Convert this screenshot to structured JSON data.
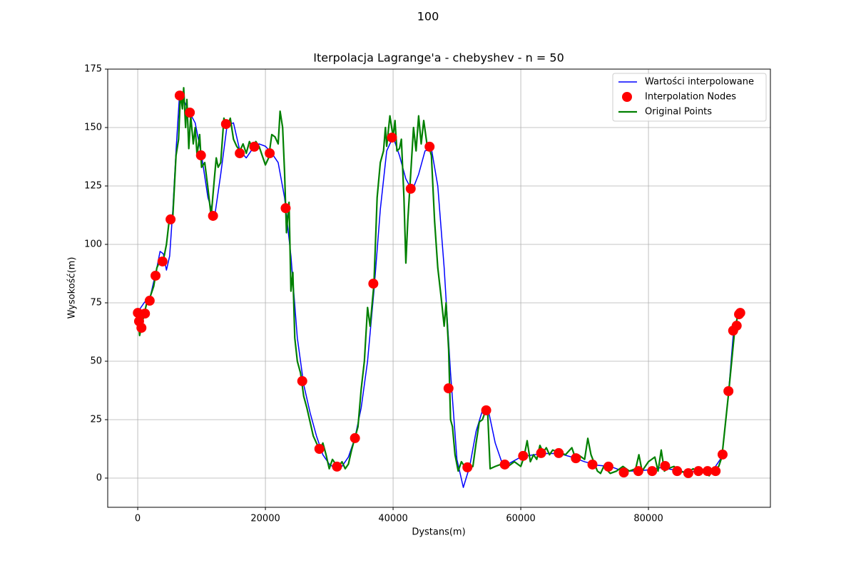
{
  "chart_data": {
    "type": "line",
    "suptitle": "100",
    "title": "Iterpolacja Lagrange'a - chebyshev - n = 50",
    "xlabel": "Dystans(m)",
    "ylabel": "Wysokość(m)",
    "xlim": [
      -4700,
      99100
    ],
    "ylim": [
      -12.5,
      175
    ],
    "xticks": [
      0,
      20000,
      40000,
      60000,
      80000
    ],
    "yticks": [
      0,
      25,
      50,
      75,
      100,
      125,
      150,
      175
    ],
    "grid": true,
    "legend": "upper right",
    "series": [
      {
        "name": "Wartości interpolowane",
        "type": "line",
        "color": "#0000ff",
        "x": [
          0,
          1000,
          2000,
          3000,
          3500,
          4000,
          4500,
          5000,
          5500,
          6000,
          6500,
          7000,
          8000,
          9000,
          10000,
          11000,
          12000,
          13000,
          14000,
          15000,
          16000,
          17000,
          18000,
          19000,
          20000,
          21000,
          22000,
          23000,
          24000,
          25000,
          26000,
          27000,
          28000,
          29000,
          30000,
          31000,
          32000,
          33000,
          34000,
          35000,
          36000,
          37000,
          38000,
          39000,
          40000,
          41000,
          42000,
          43000,
          44000,
          45000,
          46000,
          47000,
          48000,
          49000,
          50000,
          51000,
          52000,
          53000,
          54000,
          55000,
          56000,
          57000,
          58000,
          60000,
          62000,
          64000,
          66000,
          68000,
          70000,
          72000,
          74000,
          76000,
          78000,
          80000,
          82000,
          84000,
          86000,
          88000,
          90000,
          91500,
          92500,
          93300,
          94000,
          94400
        ],
        "values": [
          71,
          75,
          78,
          90,
          97,
          96,
          89,
          95,
          115,
          140,
          162,
          163,
          157,
          152,
          138,
          120,
          111,
          130,
          151,
          152,
          140,
          137,
          141,
          143,
          142,
          139,
          135,
          120,
          95,
          60,
          40,
          28,
          18,
          10,
          6,
          4,
          5,
          9,
          17,
          30,
          50,
          80,
          115,
          140,
          146,
          138,
          128,
          123,
          130,
          140,
          141,
          125,
          90,
          45,
          8,
          -4,
          5,
          20,
          29,
          28,
          15,
          7,
          6,
          9,
          10,
          10.5,
          10.5,
          9,
          7,
          5.5,
          5,
          3,
          3,
          3.5,
          4.5,
          3.5,
          2.5,
          3,
          3,
          9,
          35,
          62,
          69,
          71
        ]
      },
      {
        "name": "Interpolation Nodes",
        "type": "scatter",
        "color": "#ff0000",
        "x": [
          23,
          210,
          581,
          1137,
          1874,
          2790,
          3882,
          5144,
          6573,
          8162,
          9905,
          11795,
          13825,
          15986,
          18261,
          20670,
          23173,
          25772,
          28455,
          31211,
          34032,
          36904,
          39817,
          42758,
          45717,
          48683,
          51642,
          54583,
          57496,
          60368,
          63189,
          65945,
          68628,
          71227,
          73730,
          76139,
          78414,
          80575,
          82605,
          84495,
          86238,
          87827,
          89256,
          90518,
          91610,
          92526,
          93263,
          93819,
          94190,
          94377
        ],
        "values": [
          70.7,
          67.1,
          64.3,
          70.4,
          75.9,
          86.6,
          92.7,
          110.7,
          163.7,
          156.4,
          138.1,
          112.2,
          151.5,
          139.0,
          141.8,
          139.0,
          115.5,
          41.5,
          12.5,
          4.9,
          17.1,
          83.2,
          145.7,
          123.8,
          141.8,
          38.4,
          4.6,
          29.0,
          5.8,
          9.5,
          10.7,
          10.7,
          8.5,
          5.8,
          4.9,
          2.4,
          3.0,
          3.0,
          5.2,
          3.0,
          2.1,
          3.0,
          3.0,
          3.0,
          10.1,
          37.2,
          63.1,
          65.2,
          70.1,
          70.7
        ]
      },
      {
        "name": "Original Points",
        "type": "line",
        "color": "#008000",
        "x": [
          0,
          300,
          600,
          1000,
          1500,
          2000,
          2500,
          3000,
          3500,
          4000,
          4500,
          5000,
          5500,
          6000,
          6400,
          6700,
          7000,
          7200,
          7500,
          7700,
          8000,
          8300,
          8700,
          9000,
          9300,
          9700,
          10000,
          10500,
          11000,
          11500,
          12000,
          12300,
          12600,
          13000,
          13500,
          14000,
          14500,
          15000,
          15500,
          16000,
          16500,
          17000,
          17500,
          18000,
          18500,
          19000,
          19500,
          20000,
          20500,
          21000,
          21500,
          22000,
          22300,
          22700,
          23000,
          23300,
          23700,
          24000,
          24300,
          24600,
          25000,
          25500,
          26000,
          26500,
          27000,
          27500,
          28000,
          28500,
          29000,
          29500,
          30000,
          30500,
          31000,
          31500,
          32000,
          32500,
          33000,
          33500,
          34000,
          34500,
          35000,
          35500,
          36000,
          36400,
          37000,
          37500,
          38000,
          38500,
          38800,
          39000,
          39500,
          40000,
          40300,
          40600,
          41000,
          41300,
          41700,
          42000,
          42300,
          42800,
          43200,
          43600,
          44000,
          44400,
          44800,
          45300,
          45700,
          46000,
          46500,
          47000,
          47500,
          48000,
          48300,
          48700,
          49000,
          49300,
          49700,
          50200,
          50700,
          51200,
          51800,
          52500,
          53000,
          53500,
          54000,
          54500,
          54800,
          55200,
          56000,
          57000,
          58000,
          59000,
          60000,
          60500,
          61000,
          61500,
          62000,
          62500,
          63000,
          63500,
          64000,
          64500,
          65000,
          66000,
          67000,
          68000,
          68500,
          69000,
          70000,
          70500,
          71000,
          72000,
          72500,
          73000,
          74000,
          75000,
          76000,
          77000,
          78000,
          78500,
          79000,
          80000,
          81000,
          81500,
          82000,
          82500,
          83000,
          84000,
          85000,
          86000,
          87000,
          88000,
          89000,
          89500,
          90000,
          91000,
          91500,
          92500,
          93500,
          94000,
          94400
        ],
        "values": [
          70,
          61,
          65,
          70,
          76,
          78,
          82,
          90,
          93,
          93,
          100,
          112,
          112,
          138,
          145,
          165,
          158,
          167,
          150,
          162,
          141,
          155,
          143,
          150,
          138,
          147,
          133,
          135,
          124,
          112,
          128,
          137,
          133,
          135,
          154,
          150,
          154,
          145,
          142,
          140,
          143,
          139,
          144,
          141,
          144,
          142,
          138,
          134,
          137,
          147,
          146,
          143,
          157,
          150,
          131,
          105,
          118,
          80,
          88,
          60,
          50,
          45,
          35,
          30,
          24,
          18,
          15,
          12,
          15,
          10,
          4,
          8,
          6,
          5,
          7,
          4,
          6,
          12,
          17,
          22,
          38,
          50,
          73,
          65,
          83,
          120,
          135,
          140,
          150,
          142,
          155,
          146,
          153,
          140,
          141,
          145,
          120,
          92,
          110,
          132,
          150,
          140,
          155,
          143,
          153,
          143,
          141,
          138,
          110,
          90,
          78,
          65,
          75,
          55,
          25,
          22,
          10,
          3,
          7,
          5,
          4,
          5,
          15,
          24,
          25,
          29,
          29,
          4,
          5,
          6,
          5,
          7,
          5,
          9,
          16,
          7,
          10,
          8,
          14,
          11,
          13,
          10,
          12,
          11,
          10,
          13,
          9,
          10,
          8,
          17,
          10,
          3,
          2,
          5,
          2,
          3,
          5,
          3,
          4,
          10,
          3,
          7,
          9,
          3,
          12,
          3,
          4,
          5,
          3,
          2,
          4,
          2,
          4,
          1,
          3,
          5,
          9,
          35,
          63,
          70,
          71
        ]
      }
    ]
  }
}
